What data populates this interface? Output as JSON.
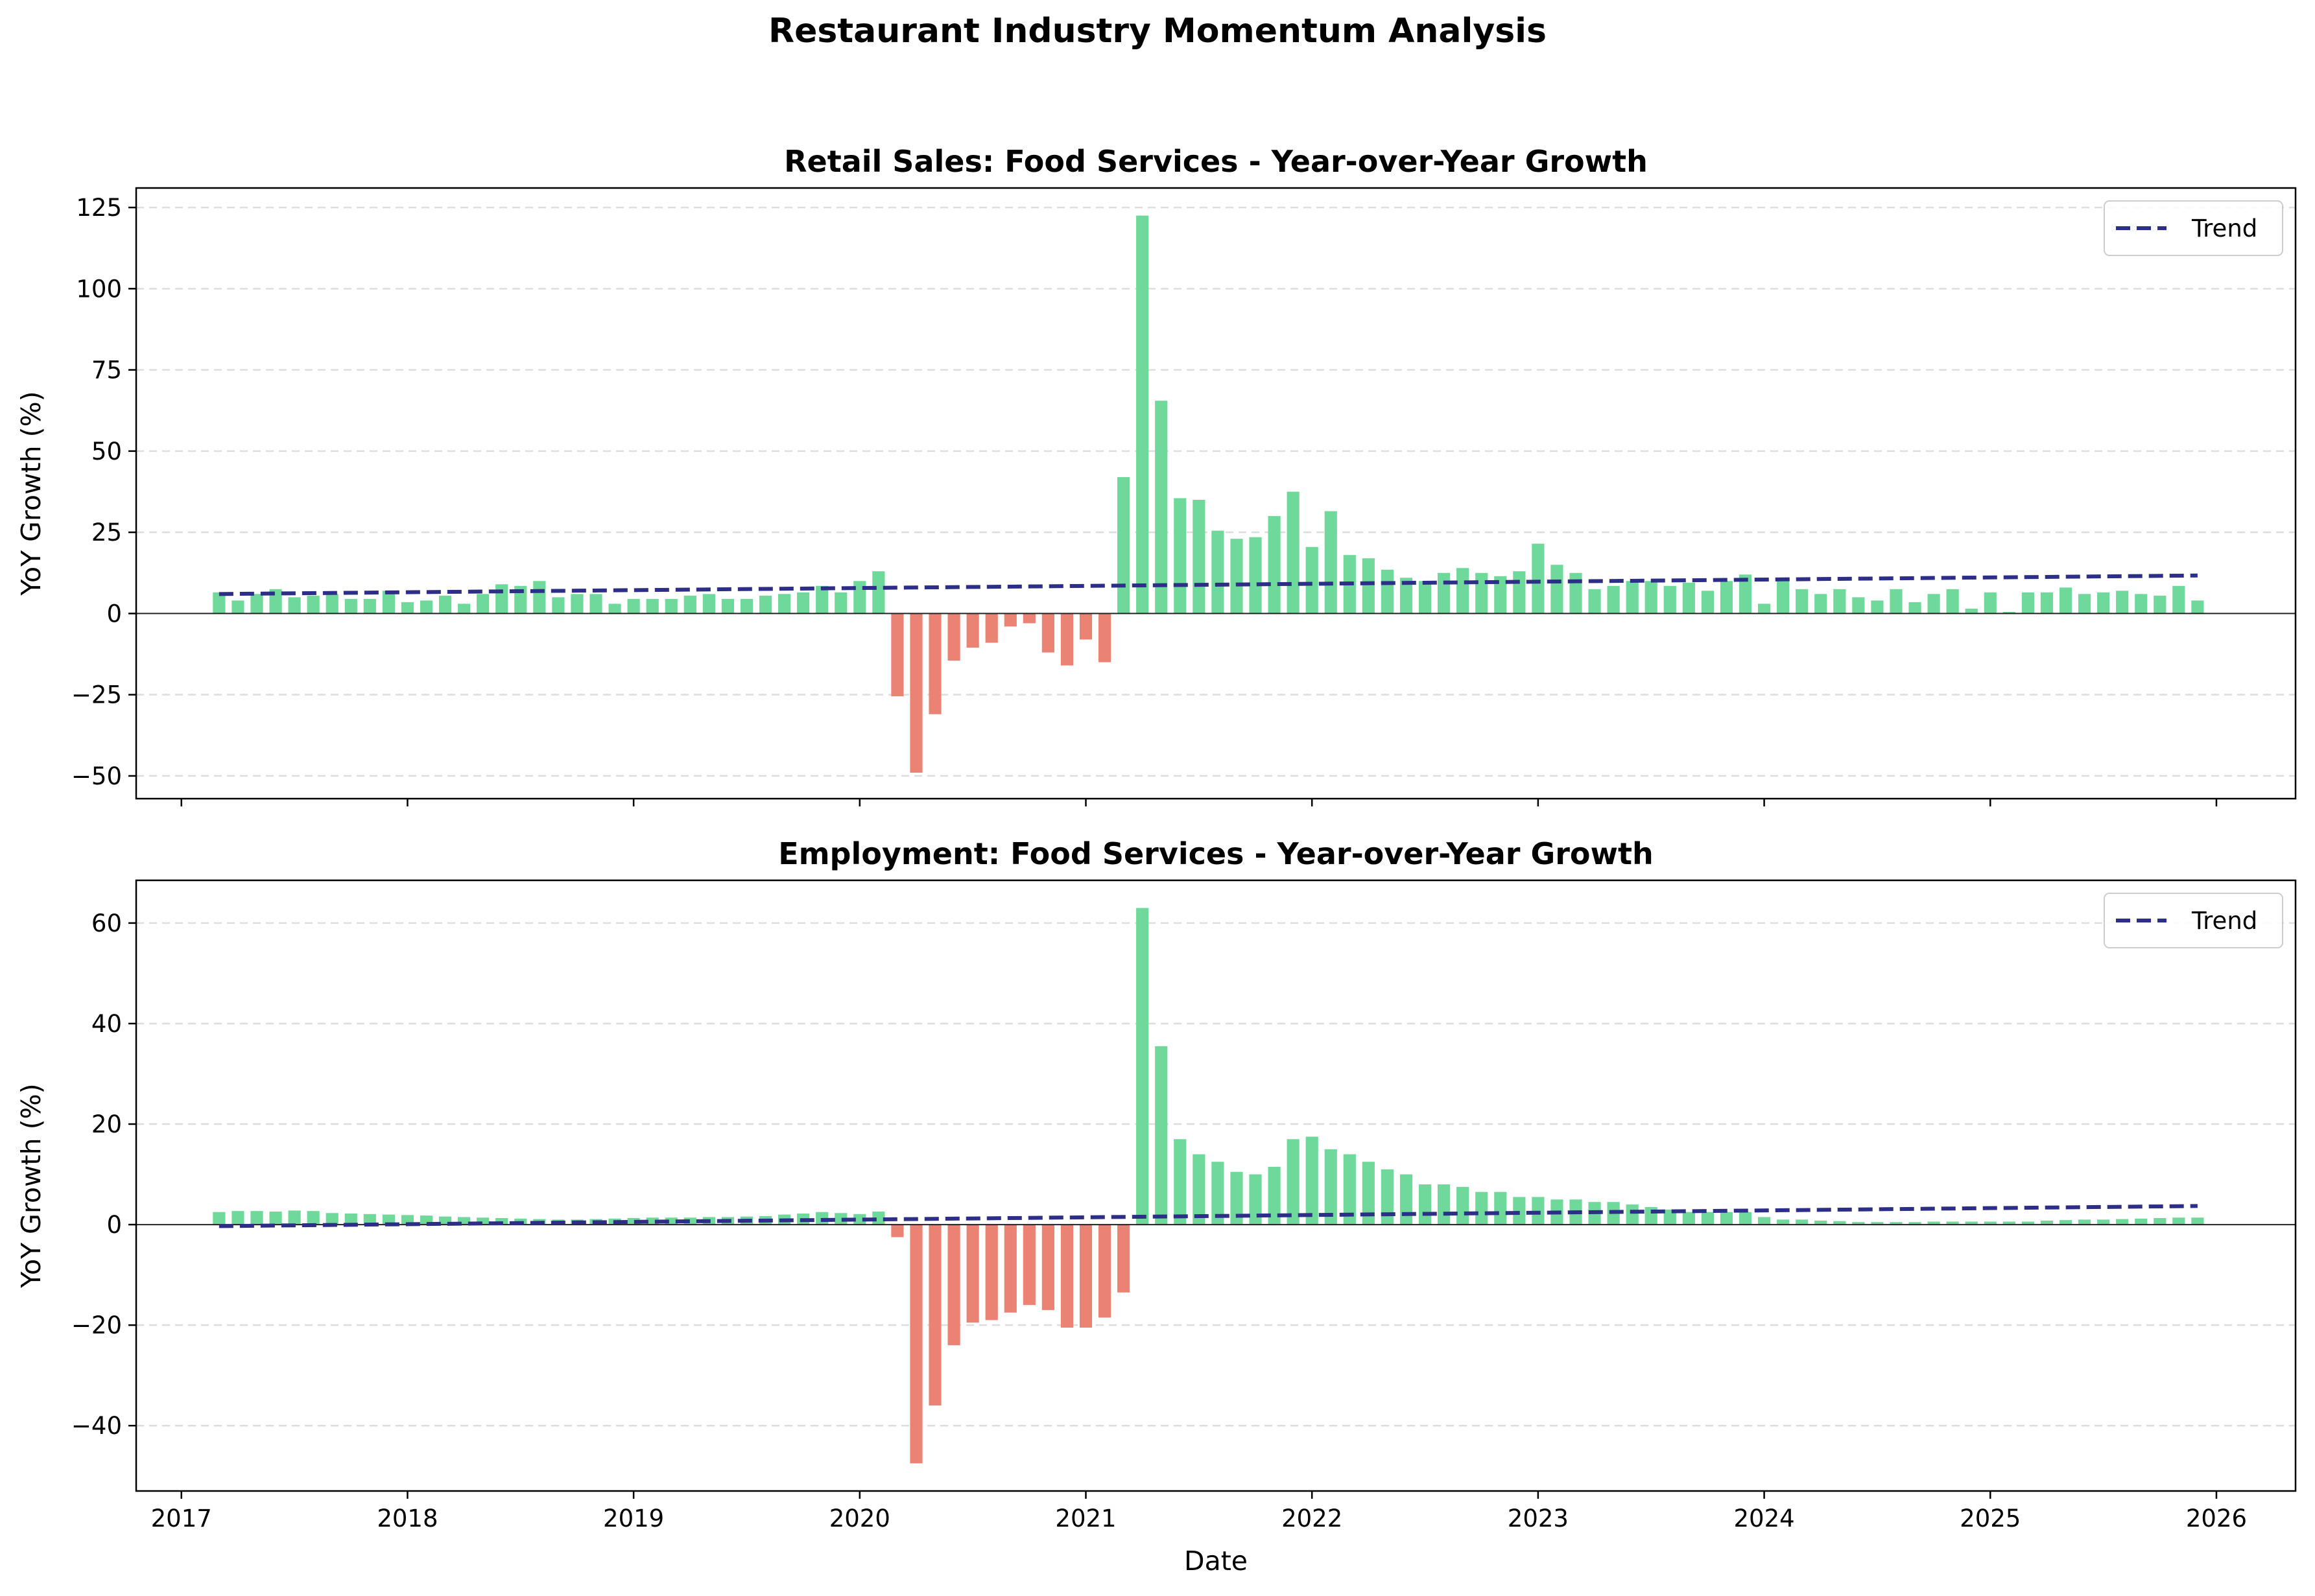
{
  "figure_title": "Restaurant Industry Momentum Analysis",
  "colors": {
    "positive": "#6ed99a",
    "negative": "#eb8374",
    "trend": "#2d2e87",
    "zero_line": "#222222",
    "grid": "#dddddd"
  },
  "chart_data": [
    {
      "type": "bar",
      "title": "Retail Sales: Food Services - Year-over-Year Growth",
      "xlabel": "",
      "ylabel": "YoY Growth (%)",
      "ylim": [
        -57,
        131
      ],
      "yticks": [
        -50,
        -25,
        0,
        25,
        50,
        75,
        100,
        125
      ],
      "ytick_labels": [
        "−50",
        "−25",
        "0",
        "25",
        "50",
        "75",
        "100",
        "125"
      ],
      "xlim": [
        2016.8,
        2026.35
      ],
      "xticks": [
        2017,
        2018,
        2019,
        2020,
        2021,
        2022,
        2023,
        2024,
        2025,
        2026
      ],
      "xtick_labels_shown": false,
      "grid": "y-dashed",
      "legend": {
        "placement": "upper-right",
        "entries": [
          "Trend"
        ]
      },
      "start_date": "2017-03",
      "values": [
        6.5,
        4,
        6,
        7.5,
        5,
        5.5,
        6,
        4.5,
        4.5,
        7,
        3.5,
        4,
        5.5,
        3,
        6,
        9,
        8.5,
        10,
        5,
        6,
        6,
        3,
        4.5,
        4.5,
        4.5,
        5.5,
        6,
        4.5,
        4.5,
        5.5,
        6,
        6.5,
        8.5,
        6.5,
        10,
        13,
        -25.5,
        -49,
        -31,
        -14.5,
        -10.5,
        -9,
        -4,
        -3,
        -12,
        -16,
        -8,
        -15,
        42,
        122.5,
        65.5,
        35.5,
        35,
        25.5,
        23,
        23.5,
        30,
        37.5,
        20.5,
        31.5,
        18,
        17,
        13.5,
        11,
        10,
        12.5,
        14,
        12.5,
        11.5,
        13,
        21.5,
        15,
        12.5,
        7.5,
        8.5,
        10,
        10,
        8.5,
        9.5,
        7,
        10,
        12,
        3,
        11,
        7.5,
        6,
        7.5,
        5,
        4,
        7.5,
        3.5,
        6,
        7.5,
        1.5,
        6.5,
        0.5,
        6.5,
        6.5,
        8,
        6,
        6.5,
        7,
        6,
        5.5,
        8.5,
        4
      ],
      "trend": {
        "start": 6.0,
        "end": 11.7
      }
    },
    {
      "type": "bar",
      "title": "Employment: Food Services - Year-over-Year Growth",
      "xlabel": "Date",
      "ylabel": "YoY Growth (%)",
      "ylim": [
        -53,
        68.5
      ],
      "yticks": [
        -40,
        -20,
        0,
        20,
        40,
        60
      ],
      "ytick_labels": [
        "−40",
        "−20",
        "0",
        "20",
        "40",
        "60"
      ],
      "xlim": [
        2016.8,
        2026.35
      ],
      "xticks": [
        2017,
        2018,
        2019,
        2020,
        2021,
        2022,
        2023,
        2024,
        2025,
        2026
      ],
      "xtick_labels": [
        "2017",
        "2018",
        "2019",
        "2020",
        "2021",
        "2022",
        "2023",
        "2024",
        "2025",
        "2026"
      ],
      "grid": "y-dashed",
      "legend": {
        "placement": "upper-right",
        "entries": [
          "Trend"
        ]
      },
      "start_date": "2017-03",
      "values": [
        2.5,
        2.7,
        2.7,
        2.6,
        2.8,
        2.7,
        2.3,
        2.2,
        2.1,
        2.0,
        1.9,
        1.8,
        1.6,
        1.5,
        1.4,
        1.3,
        1.2,
        1.1,
        1.0,
        1.0,
        1.1,
        1.2,
        1.3,
        1.4,
        1.4,
        1.4,
        1.5,
        1.5,
        1.6,
        1.7,
        2.0,
        2.2,
        2.5,
        2.3,
        2.1,
        2.6,
        -2.5,
        -47.5,
        -36,
        -24,
        -19.5,
        -19,
        -17.5,
        -16,
        -17,
        -20.5,
        -20.5,
        -18.5,
        -13.5,
        63,
        35.5,
        17,
        14,
        12.5,
        10.5,
        10,
        11.5,
        17,
        17.5,
        15,
        14,
        12.5,
        11,
        10,
        8,
        8,
        7.5,
        6.5,
        6.5,
        5.5,
        5.5,
        5,
        5,
        4.5,
        4.5,
        4,
        3.5,
        3,
        2.5,
        2.5,
        2.5,
        2.5,
        1.5,
        1,
        1,
        0.8,
        0.7,
        0.5,
        0.5,
        0.5,
        0.5,
        0.6,
        0.6,
        0.6,
        0.6,
        0.6,
        0.6,
        0.8,
        0.9,
        1.0,
        1.0,
        1.1,
        1.2,
        1.3,
        1.4,
        1.4
      ],
      "trend": {
        "start": -0.3,
        "end": 3.7
      }
    }
  ]
}
